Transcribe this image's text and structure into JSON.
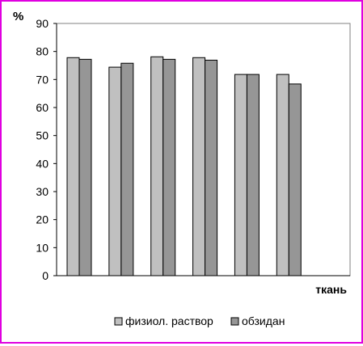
{
  "chart_data": {
    "type": "bar",
    "title": "",
    "ylabel": "%",
    "xlabel": "ткань",
    "ylim": [
      0,
      90
    ],
    "yticks": [
      0,
      10,
      20,
      30,
      40,
      50,
      60,
      70,
      80,
      90
    ],
    "categories": [
      "",
      "",
      "",
      "",
      "",
      "",
      ""
    ],
    "series": [
      {
        "name": "физиол. раствор",
        "color": "#c0c0c0",
        "values": [
          77.8,
          74.4,
          78.1,
          77.8,
          71.8,
          71.8,
          null
        ]
      },
      {
        "name": "обзидан",
        "color": "#969696",
        "values": [
          77.2,
          75.8,
          77.2,
          76.9,
          71.8,
          68.4,
          null
        ]
      }
    ],
    "grid": false,
    "legend": "bottom",
    "border_color": "#e000e0"
  }
}
